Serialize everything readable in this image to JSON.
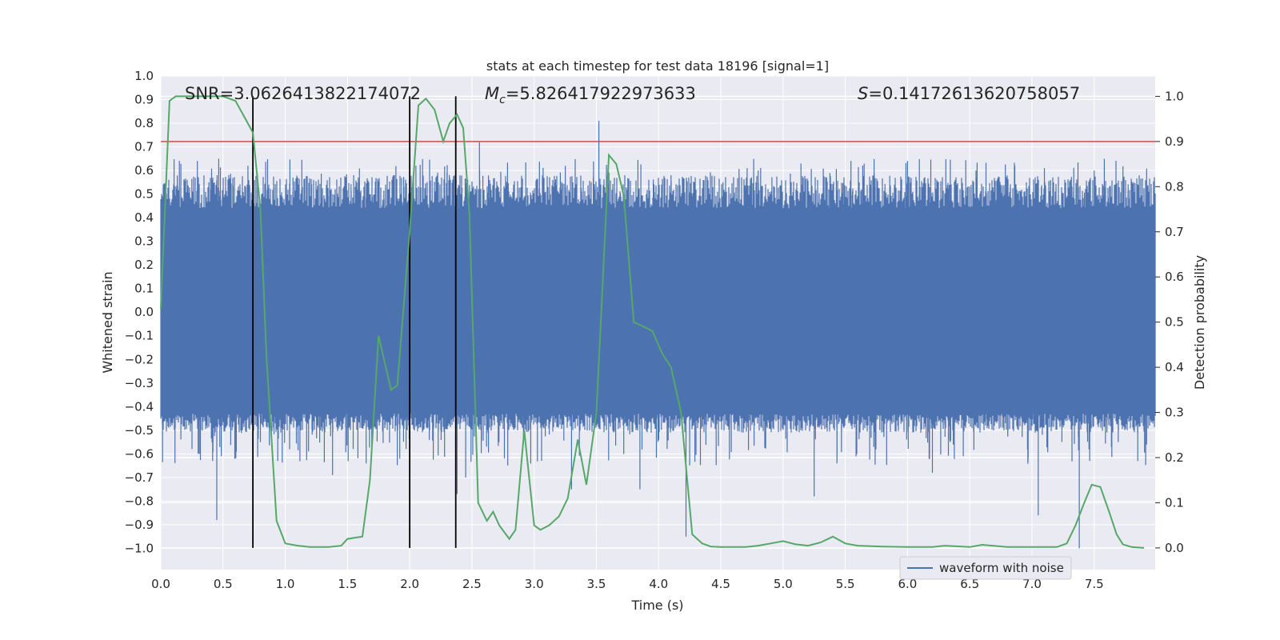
{
  "chart_data": {
    "type": "line",
    "title": "stats at each timestep for test data 18196 [signal=1]",
    "xlabel": "Time (s)",
    "ylabel_left": "Whitened strain",
    "ylabel_right": "Detection probability",
    "xlim": [
      0.0,
      7.99
    ],
    "ylim_left": [
      -1.09,
      1.0
    ],
    "ylim_right": [
      -0.048,
      1.045
    ],
    "x_ticks": [
      "0.0",
      "0.5",
      "1.0",
      "1.5",
      "2.0",
      "2.5",
      "3.0",
      "3.5",
      "4.0",
      "4.5",
      "5.0",
      "5.5",
      "6.0",
      "6.5",
      "7.0",
      "7.5"
    ],
    "y_left_ticks": [
      "1.0",
      "0.9",
      "0.8",
      "0.7",
      "0.6",
      "0.5",
      "0.4",
      "0.3",
      "0.2",
      "0.1",
      "0.0",
      "−0.1",
      "−0.2",
      "−0.3",
      "−0.4",
      "−0.5",
      "−0.6",
      "−0.7",
      "−0.8",
      "−0.9",
      "−1.0"
    ],
    "y_right_ticks": [
      "1.0",
      "0.9",
      "0.8",
      "0.7",
      "0.6",
      "0.5",
      "0.4",
      "0.3",
      "0.2",
      "0.1",
      "0.0"
    ],
    "grid": true,
    "background": "#eaeaf2",
    "annotations": {
      "snr": "SNR=3.0626413822174072",
      "mc_value": "=5.826417922973633",
      "s_value": "=0.14172613620758057"
    },
    "legend": {
      "label": "waveform with noise",
      "placement": "lower-right"
    },
    "colors": {
      "waveform": "#4c72b0",
      "probability": "#55a868",
      "threshold": "#c44e52",
      "markers": "#000000"
    },
    "threshold": 0.9,
    "vertical_markers_x": [
      0.74,
      2.0,
      2.37
    ],
    "waveform": {
      "name": "waveform with noise",
      "band_min": -0.43,
      "band_max": 0.44,
      "spikes_up": [
        [
          0.02,
          0.54
        ],
        [
          0.45,
          0.55
        ],
        [
          0.7,
          0.62
        ],
        [
          1.1,
          0.57
        ],
        [
          1.55,
          0.58
        ],
        [
          2.05,
          0.62
        ],
        [
          2.3,
          0.59
        ],
        [
          2.56,
          0.72
        ],
        [
          3.25,
          0.62
        ],
        [
          3.52,
          0.81
        ],
        [
          4.1,
          0.58
        ],
        [
          4.8,
          0.6
        ],
        [
          5.35,
          0.57
        ],
        [
          6.0,
          0.64
        ],
        [
          6.55,
          0.6
        ],
        [
          7.1,
          0.61
        ],
        [
          7.5,
          0.6
        ]
      ],
      "spikes_down": [
        [
          0.45,
          -0.88
        ],
        [
          0.3,
          -0.6
        ],
        [
          0.8,
          -0.55
        ],
        [
          0.94,
          -0.63
        ],
        [
          1.38,
          -0.69
        ],
        [
          1.65,
          -0.64
        ],
        [
          1.92,
          -0.62
        ],
        [
          2.38,
          -0.77
        ],
        [
          2.45,
          -0.7
        ],
        [
          3.3,
          -0.75
        ],
        [
          3.85,
          -0.75
        ],
        [
          4.22,
          -0.95
        ],
        [
          5.25,
          -0.78
        ],
        [
          6.2,
          -0.68
        ],
        [
          7.05,
          -0.86
        ],
        [
          7.38,
          -1.0
        ],
        [
          7.85,
          -0.63
        ]
      ]
    },
    "probability": {
      "x": [
        0.0,
        0.07,
        0.12,
        0.2,
        0.35,
        0.5,
        0.6,
        0.68,
        0.74,
        0.8,
        0.85,
        0.93,
        1.0,
        1.1,
        1.2,
        1.35,
        1.45,
        1.5,
        1.62,
        1.68,
        1.75,
        1.8,
        1.85,
        1.9,
        2.0,
        2.07,
        2.13,
        2.2,
        2.27,
        2.32,
        2.38,
        2.43,
        2.48,
        2.55,
        2.62,
        2.67,
        2.72,
        2.8,
        2.85,
        2.92,
        3.0,
        3.05,
        3.12,
        3.2,
        3.27,
        3.35,
        3.42,
        3.5,
        3.6,
        3.66,
        3.72,
        3.8,
        3.88,
        3.95,
        4.03,
        4.1,
        4.18,
        4.27,
        4.35,
        4.42,
        4.5,
        4.6,
        4.7,
        4.8,
        4.9,
        5.0,
        5.1,
        5.2,
        5.3,
        5.4,
        5.5,
        5.6,
        5.8,
        6.0,
        6.2,
        6.3,
        6.5,
        6.6,
        6.8,
        7.0,
        7.2,
        7.28,
        7.35,
        7.42,
        7.48,
        7.55,
        7.62,
        7.68,
        7.73,
        7.8,
        7.9
      ],
      "y": [
        0.53,
        0.99,
        1.0,
        1.0,
        1.0,
        1.0,
        0.99,
        0.95,
        0.92,
        0.75,
        0.42,
        0.06,
        0.01,
        0.005,
        0.002,
        0.002,
        0.005,
        0.02,
        0.025,
        0.15,
        0.47,
        0.41,
        0.35,
        0.36,
        0.7,
        0.98,
        0.995,
        0.97,
        0.9,
        0.94,
        0.96,
        0.93,
        0.74,
        0.1,
        0.06,
        0.08,
        0.05,
        0.02,
        0.04,
        0.26,
        0.05,
        0.04,
        0.05,
        0.07,
        0.11,
        0.24,
        0.14,
        0.3,
        0.87,
        0.85,
        0.78,
        0.5,
        0.49,
        0.48,
        0.43,
        0.4,
        0.3,
        0.03,
        0.01,
        0.003,
        0.002,
        0.002,
        0.002,
        0.005,
        0.01,
        0.015,
        0.008,
        0.005,
        0.012,
        0.025,
        0.01,
        0.005,
        0.003,
        0.002,
        0.002,
        0.005,
        0.002,
        0.007,
        0.002,
        0.002,
        0.002,
        0.01,
        0.05,
        0.1,
        0.14,
        0.135,
        0.08,
        0.03,
        0.008,
        0.002,
        0.0
      ]
    }
  }
}
